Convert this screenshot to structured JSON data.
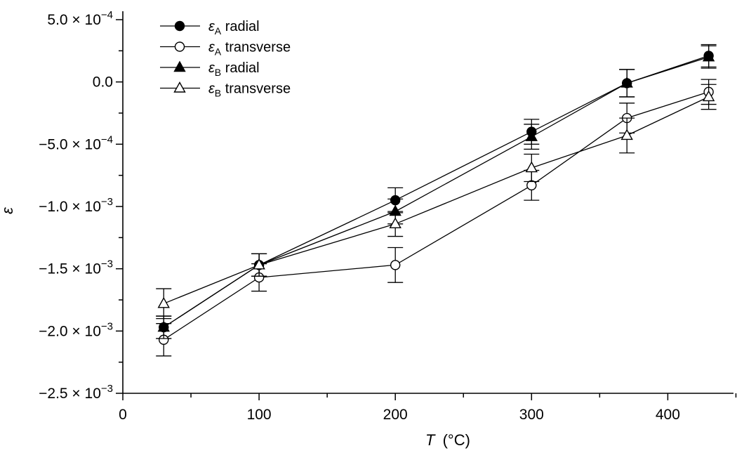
{
  "chart_data": {
    "type": "line",
    "title": "",
    "xlabel": "T",
    "xlabel_unit": "(°C)",
    "ylabel": "ε",
    "xlim": [
      0,
      450
    ],
    "ylim": [
      -0.0025,
      0.0005
    ],
    "grid": false,
    "legend_position": "top-left",
    "x_ticks": [
      {
        "value": 0,
        "label": "0"
      },
      {
        "value": 100,
        "label": "100"
      },
      {
        "value": 200,
        "label": "200"
      },
      {
        "value": 300,
        "label": "300"
      },
      {
        "value": 400,
        "label": "400"
      }
    ],
    "y_ticks": [
      {
        "value": 0.0005,
        "mantissa": "5.0",
        "exp": "−4"
      },
      {
        "value": 0,
        "mantissa": "0.0",
        "exp": ""
      },
      {
        "value": -0.0005,
        "mantissa": "−5.0",
        "exp": "−4"
      },
      {
        "value": -0.001,
        "mantissa": "−1.0",
        "exp": "−3"
      },
      {
        "value": -0.0015,
        "mantissa": "−1.5",
        "exp": "−3"
      },
      {
        "value": -0.002,
        "mantissa": "−2.0",
        "exp": "−3"
      },
      {
        "value": -0.0025,
        "mantissa": "−2.5",
        "exp": "−3"
      }
    ],
    "series": [
      {
        "name": "εA radial",
        "symbol": "ε",
        "subscript": "A",
        "suffix": "radial",
        "marker": "circle",
        "filled": true,
        "x": [
          30,
          100,
          200,
          300,
          370,
          430
        ],
        "y": [
          -0.00197,
          -0.00147,
          -0.00095,
          -0.0004,
          -1e-05,
          0.00021
        ],
        "err": [
          9e-05,
          9e-05,
          0.0001,
          0.0001,
          0.00011,
          9e-05
        ]
      },
      {
        "name": "εA transverse",
        "symbol": "ε",
        "subscript": "A",
        "suffix": "transverse",
        "marker": "circle",
        "filled": false,
        "x": [
          30,
          100,
          200,
          300,
          370,
          430
        ],
        "y": [
          -0.00207,
          -0.00157,
          -0.00147,
          -0.00083,
          -0.00029,
          -8e-05
        ],
        "err": [
          0.00013,
          0.00011,
          0.00014,
          0.00012,
          0.00012,
          0.0001
        ]
      },
      {
        "name": "εB radial",
        "symbol": "ε",
        "subscript": "B",
        "suffix": "radial",
        "marker": "triangle",
        "filled": true,
        "x": [
          30,
          100,
          200,
          300,
          370,
          430
        ],
        "y": [
          -0.00197,
          -0.00147,
          -0.00104,
          -0.00044,
          -1e-05,
          0.0002
        ],
        "err": [
          9e-05,
          9e-05,
          0.0001,
          0.0001,
          0.00011,
          9e-05
        ]
      },
      {
        "name": "εB transverse",
        "symbol": "ε",
        "subscript": "B",
        "suffix": "transverse",
        "marker": "triangle",
        "filled": false,
        "x": [
          30,
          100,
          200,
          300,
          370,
          430
        ],
        "y": [
          -0.00178,
          -0.00147,
          -0.00114,
          -0.00069,
          -0.00043,
          -0.00012
        ],
        "err": [
          0.00012,
          9e-05,
          0.0001,
          0.00011,
          0.00014,
          0.0001
        ]
      }
    ]
  }
}
